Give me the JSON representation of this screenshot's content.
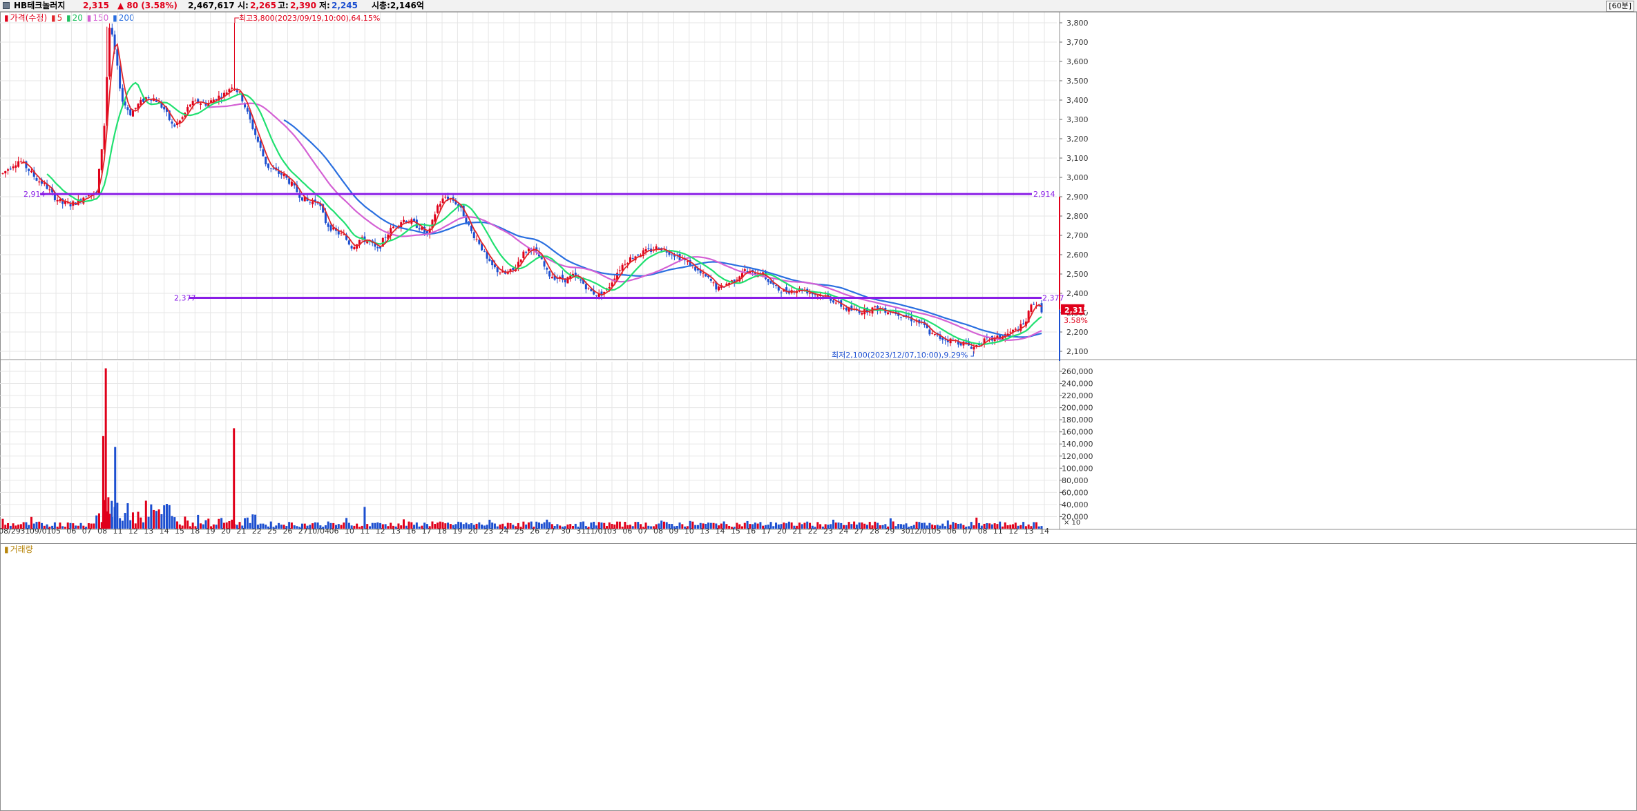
{
  "header": {
    "stock_name": "HB테크놀러지",
    "price": "2,315",
    "change": "▲ 80 (3.58%)",
    "volume": "2,467,617",
    "open_label": "시:",
    "open_value": "2,265",
    "high_label": "고:",
    "high_value": "2,390",
    "low_label": "저:",
    "low_value": "2,245",
    "market_cap": "시총:2,146억",
    "interval": "[60분]"
  },
  "price_legend": {
    "label": "가격(수정)",
    "ma": [
      "5",
      "20",
      "150",
      "200"
    ]
  },
  "volume_legend": {
    "label": "거래량"
  },
  "annotations": {
    "high": "최고3,800(2023/09/19,10:00),64.15%",
    "low": "최저2,100(2023/12/07,10:00),9.29%",
    "last_price": "2,315",
    "last_change": "3.58%"
  },
  "colors": {
    "up": "#e0001a",
    "down": "#1c4fd0",
    "ma5": "#e2262a",
    "ma20": "#20e070",
    "ma150": "#d461d4",
    "ma200": "#2a6fe0",
    "hline": "#8a1ee6",
    "grid": "#e6e6e6"
  },
  "chart_data": [
    {
      "type": "candlestick",
      "y_scale": "linear",
      "ylim": [
        2070,
        3840
      ],
      "y_ticks": [
        2100,
        2200,
        2300,
        2400,
        2500,
        2600,
        2700,
        2800,
        2900,
        3000,
        3100,
        3200,
        3300,
        3400,
        3500,
        3600,
        3700,
        3800
      ],
      "x_date_labels": [
        "08/29",
        "31",
        "09/01",
        "05",
        "06",
        "07",
        "08",
        "11",
        "12",
        "13",
        "14",
        "15",
        "18",
        "19",
        "20",
        "21",
        "22",
        "25",
        "26",
        "27",
        "10/04",
        "06",
        "10",
        "11",
        "12",
        "13",
        "16",
        "17",
        "18",
        "19",
        "20",
        "23",
        "24",
        "25",
        "26",
        "27",
        "30",
        "31",
        "11/01",
        "03",
        "06",
        "07",
        "08",
        "09",
        "10",
        "13",
        "14",
        "15",
        "16",
        "17",
        "20",
        "21",
        "22",
        "23",
        "24",
        "27",
        "28",
        "29",
        "30",
        "12/01",
        "05",
        "06",
        "07",
        "08",
        "11",
        "12",
        "13",
        "14"
      ],
      "horizontal_lines": [
        {
          "value": 2914,
          "label": "2,914"
        },
        {
          "value": 2377,
          "label": "2,377"
        }
      ],
      "series_close_trajectory": [
        [
          0,
          3020
        ],
        [
          2,
          3060
        ],
        [
          4,
          3090
        ],
        [
          6,
          3040
        ],
        [
          8,
          2990
        ],
        [
          10,
          2960
        ],
        [
          12,
          2900
        ],
        [
          14,
          2865
        ],
        [
          16,
          2860
        ],
        [
          18,
          2880
        ],
        [
          20,
          2920
        ],
        [
          22,
          2910
        ],
        [
          24,
          3300
        ],
        [
          25,
          3780
        ],
        [
          26,
          3700
        ],
        [
          28,
          3400
        ],
        [
          30,
          3330
        ],
        [
          32,
          3380
        ],
        [
          34,
          3420
        ],
        [
          36,
          3400
        ],
        [
          38,
          3350
        ],
        [
          40,
          3260
        ],
        [
          42,
          3300
        ],
        [
          44,
          3380
        ],
        [
          46,
          3390
        ],
        [
          48,
          3380
        ],
        [
          50,
          3410
        ],
        [
          52,
          3430
        ],
        [
          54,
          3480
        ],
        [
          56,
          3420
        ],
        [
          58,
          3300
        ],
        [
          60,
          3180
        ],
        [
          62,
          3060
        ],
        [
          64,
          3030
        ],
        [
          66,
          3010
        ],
        [
          68,
          2960
        ],
        [
          70,
          2900
        ],
        [
          72,
          2870
        ],
        [
          74,
          2880
        ],
        [
          76,
          2760
        ],
        [
          78,
          2720
        ],
        [
          80,
          2700
        ],
        [
          82,
          2640
        ],
        [
          84,
          2680
        ],
        [
          86,
          2670
        ],
        [
          88,
          2620
        ],
        [
          90,
          2700
        ],
        [
          92,
          2750
        ],
        [
          94,
          2780
        ],
        [
          96,
          2770
        ],
        [
          98,
          2740
        ],
        [
          100,
          2700
        ],
        [
          102,
          2850
        ],
        [
          104,
          2900
        ],
        [
          106,
          2880
        ],
        [
          108,
          2820
        ],
        [
          110,
          2720
        ],
        [
          112,
          2660
        ],
        [
          114,
          2560
        ],
        [
          116,
          2520
        ],
        [
          118,
          2500
        ],
        [
          120,
          2520
        ],
        [
          122,
          2600
        ],
        [
          124,
          2640
        ],
        [
          126,
          2590
        ],
        [
          128,
          2500
        ],
        [
          130,
          2480
        ],
        [
          132,
          2470
        ],
        [
          134,
          2490
        ],
        [
          136,
          2460
        ],
        [
          138,
          2410
        ],
        [
          140,
          2390
        ],
        [
          142,
          2420
        ],
        [
          144,
          2500
        ],
        [
          146,
          2560
        ],
        [
          148,
          2590
        ],
        [
          150,
          2610
        ],
        [
          152,
          2620
        ],
        [
          154,
          2640
        ],
        [
          156,
          2620
        ],
        [
          158,
          2600
        ],
        [
          160,
          2570
        ],
        [
          162,
          2540
        ],
        [
          164,
          2500
        ],
        [
          166,
          2470
        ],
        [
          168,
          2420
        ],
        [
          170,
          2450
        ],
        [
          172,
          2470
        ],
        [
          174,
          2520
        ],
        [
          176,
          2500
        ],
        [
          178,
          2510
        ],
        [
          180,
          2460
        ],
        [
          182,
          2420
        ],
        [
          184,
          2410
        ],
        [
          186,
          2420
        ],
        [
          188,
          2420
        ],
        [
          190,
          2400
        ],
        [
          192,
          2390
        ],
        [
          194,
          2380
        ],
        [
          196,
          2350
        ],
        [
          198,
          2320
        ],
        [
          200,
          2310
        ],
        [
          202,
          2310
        ],
        [
          204,
          2320
        ],
        [
          206,
          2320
        ],
        [
          208,
          2310
        ],
        [
          210,
          2300
        ],
        [
          212,
          2280
        ],
        [
          214,
          2260
        ],
        [
          216,
          2240
        ],
        [
          218,
          2190
        ],
        [
          220,
          2170
        ],
        [
          222,
          2160
        ],
        [
          224,
          2150
        ],
        [
          226,
          2140
        ],
        [
          228,
          2120
        ],
        [
          230,
          2150
        ],
        [
          232,
          2160
        ],
        [
          234,
          2170
        ],
        [
          236,
          2190
        ],
        [
          238,
          2210
        ],
        [
          240,
          2240
        ],
        [
          242,
          2360
        ],
        [
          244,
          2315
        ]
      ]
    },
    {
      "type": "bar",
      "title": "거래량",
      "ylim": [
        0,
        270000
      ],
      "y_ticks": [
        20000,
        40000,
        60000,
        80000,
        100000,
        120000,
        140000,
        160000,
        180000,
        200000,
        220000,
        240000,
        260000
      ],
      "y_unit_label": "X 10",
      "notable_bars": [
        {
          "position": "09/07",
          "value": 265000,
          "color": "up"
        },
        {
          "position": "09/07",
          "value": 153000,
          "color": "up"
        },
        {
          "position": "09/08",
          "value": 135000,
          "color": "down"
        },
        {
          "position": "09/19",
          "value": 166000,
          "color": "up"
        },
        {
          "position": "10/04",
          "value": 36000,
          "color": "down"
        }
      ]
    }
  ]
}
